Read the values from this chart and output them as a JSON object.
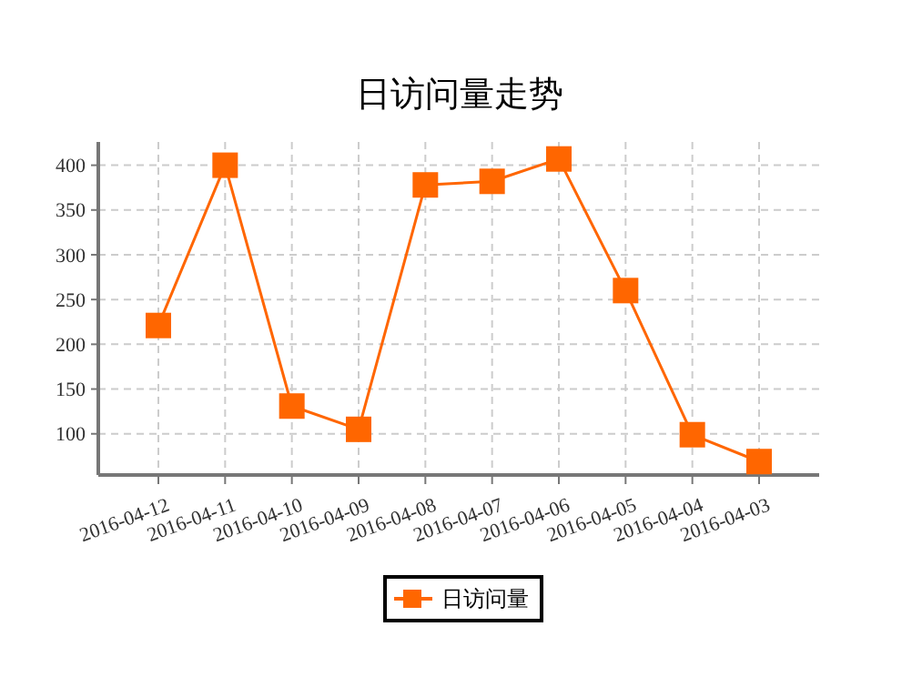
{
  "chart_data": {
    "type": "line",
    "title": "日访问量走势",
    "categories": [
      "2016-04-12",
      "2016-04-11",
      "2016-04-10",
      "2016-04-09",
      "2016-04-08",
      "2016-04-07",
      "2016-04-06",
      "2016-04-05",
      "2016-04-04",
      "2016-04-03"
    ],
    "series": [
      {
        "name": "日访问量",
        "color": "#ff6600",
        "values": [
          221,
          400,
          131,
          105,
          378,
          382,
          407,
          260,
          99,
          69
        ]
      }
    ],
    "ylim": [
      54,
      426
    ],
    "yticks": [
      100,
      150,
      200,
      250,
      300,
      350,
      400
    ],
    "grid": true,
    "legend": "bottom",
    "marker": "square",
    "line_style": "solid"
  }
}
